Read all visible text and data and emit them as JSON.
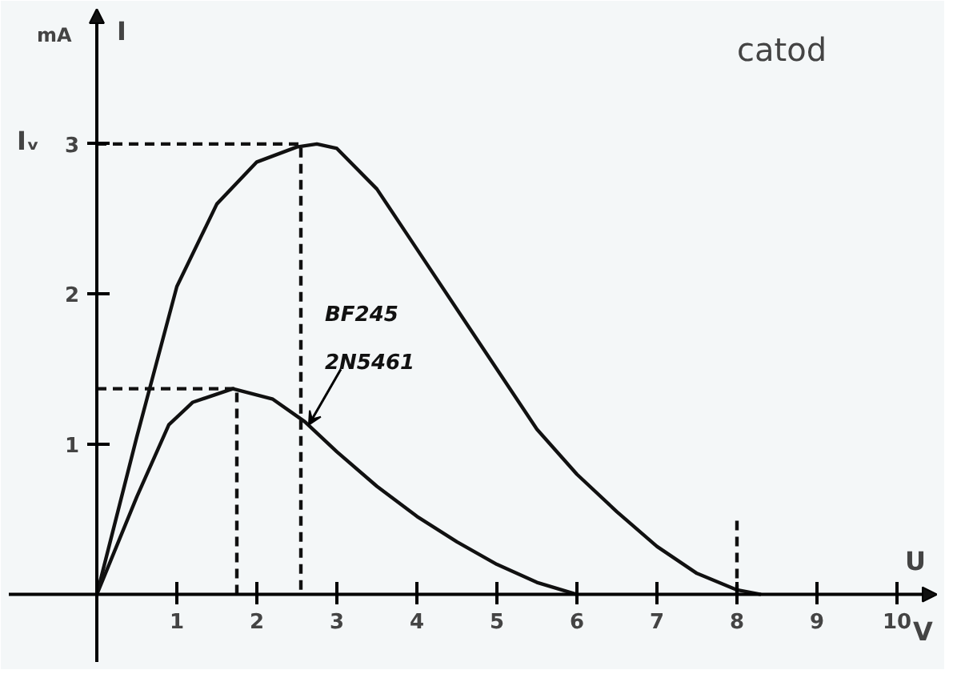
{
  "chart_data": {
    "type": "line",
    "title": "catod",
    "xlabel": "U",
    "ylabel": "I",
    "annotations": [
      "mA",
      "V",
      "Iᵥ"
    ],
    "xlim": [
      -1.1,
      10.5
    ],
    "ylim": [
      -0.45,
      3.9
    ],
    "xticks": [
      1,
      2,
      3,
      4,
      5,
      6,
      7,
      8,
      9,
      10
    ],
    "yticks": [
      1,
      2,
      3
    ],
    "grid": false,
    "marker": "none",
    "line_style": "solid",
    "series": [
      {
        "name": "BF245",
        "color": "#111111",
        "x": [
          0,
          0.5,
          1,
          1.5,
          2,
          2.5,
          2.75,
          3,
          3.5,
          4,
          4.6,
          5,
          5.5,
          6,
          6.5,
          7,
          7.5,
          8,
          8.3
        ],
        "values": [
          0,
          1.05,
          2.05,
          2.6,
          2.88,
          2.98,
          3.0,
          2.97,
          2.7,
          2.3,
          1.82,
          1.5,
          1.1,
          0.8,
          0.55,
          0.32,
          0.14,
          0.03,
          0
        ]
      },
      {
        "name": "2N5461",
        "color": "#111111",
        "x": [
          0,
          0.5,
          0.9,
          1.2,
          1.7,
          2.2,
          2.6,
          3,
          3.5,
          4,
          4.5,
          5,
          5.5,
          6
        ],
        "values": [
          0,
          0.65,
          1.13,
          1.28,
          1.37,
          1.3,
          1.15,
          0.95,
          0.72,
          0.52,
          0.35,
          0.2,
          0.08,
          0
        ]
      },
      {
        "color": "#111111",
        "line_style": "dashed",
        "x": [
          0,
          2.55,
          2.55
        ],
        "values": [
          3.0,
          3.0,
          0
        ]
      },
      {
        "color": "#111111",
        "line_style": "dashed",
        "x": [
          0,
          1.75,
          1.75
        ],
        "values": [
          1.37,
          1.37,
          0
        ]
      },
      {
        "color": "#111111",
        "line_style": "dashed",
        "x": [
          8,
          8
        ],
        "values": [
          0,
          0.5
        ]
      }
    ]
  }
}
